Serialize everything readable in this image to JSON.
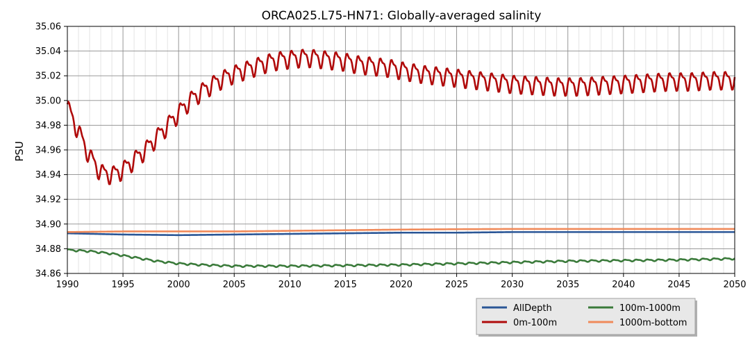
{
  "chart_data": {
    "type": "line",
    "title": "ORCA025.L75-HN71: Globally-averaged salinity",
    "xlabel": "",
    "ylabel": "PSU",
    "xlim": [
      1990,
      2050
    ],
    "ylim": [
      34.86,
      35.06
    ],
    "xticks": [
      "1990",
      "1995",
      "2000",
      "2005",
      "2010",
      "2015",
      "2020",
      "2025",
      "2030",
      "2035",
      "2040",
      "2045",
      "2050"
    ],
    "yticks": [
      "34.86",
      "34.88",
      "34.90",
      "34.92",
      "34.94",
      "34.96",
      "34.98",
      "35.00",
      "35.02",
      "35.04",
      "35.06"
    ],
    "grid": true,
    "legend_position": "bottom-right, below plot",
    "series": [
      {
        "name": "AllDepth",
        "color": "#2a5696",
        "x": [
          1990,
          1995,
          2000,
          2005,
          2010,
          2015,
          2020,
          2025,
          2030,
          2035,
          2040,
          2045,
          2050
        ],
        "values": [
          34.8925,
          34.8915,
          34.891,
          34.8915,
          34.892,
          34.8925,
          34.893,
          34.893,
          34.8935,
          34.8935,
          34.8935,
          34.8935,
          34.8935
        ]
      },
      {
        "name": "0m-100m",
        "color": "#b00a0a",
        "x": [
          1990,
          1991,
          1992,
          1993,
          1994,
          1995,
          1996,
          1997,
          1998,
          1999,
          2000,
          2001,
          2002,
          2003,
          2004,
          2005,
          2006,
          2007,
          2008,
          2009,
          2010,
          2011,
          2012,
          2013,
          2014,
          2015,
          2016,
          2017,
          2018,
          2019,
          2020,
          2022,
          2024,
          2026,
          2028,
          2030,
          2032,
          2034,
          2036,
          2038,
          2040,
          2042,
          2044,
          2046,
          2048,
          2050
        ],
        "values": [
          34.995,
          34.975,
          34.955,
          34.942,
          34.94,
          34.944,
          34.952,
          34.96,
          34.97,
          34.98,
          34.99,
          35.0,
          35.007,
          35.013,
          35.018,
          35.022,
          35.025,
          35.028,
          35.031,
          35.033,
          35.034,
          35.035,
          35.035,
          35.034,
          35.033,
          35.032,
          35.03,
          35.029,
          35.028,
          35.027,
          35.025,
          35.022,
          35.02,
          35.018,
          35.016,
          35.014,
          35.013,
          35.012,
          35.012,
          35.013,
          35.014,
          35.015,
          35.016,
          35.016,
          35.017,
          35.017
        ]
      },
      {
        "name": "100m-1000m",
        "color": "#3a7a3a",
        "x": [
          1990,
          1992,
          1994,
          1996,
          1998,
          2000,
          2002,
          2005,
          2008,
          2010,
          2015,
          2020,
          2025,
          2030,
          2035,
          2040,
          2045,
          2050
        ],
        "values": [
          34.879,
          34.878,
          34.876,
          34.873,
          34.87,
          34.868,
          34.867,
          34.866,
          34.866,
          34.866,
          34.8665,
          34.867,
          34.868,
          34.869,
          34.87,
          34.8705,
          34.871,
          34.872
        ]
      },
      {
        "name": "1000m-bottom",
        "color": "#f08a5a",
        "x": [
          1990,
          1995,
          2000,
          2005,
          2010,
          2015,
          2020,
          2025,
          2030,
          2035,
          2040,
          2045,
          2050
        ],
        "values": [
          34.8935,
          34.894,
          34.894,
          34.894,
          34.8945,
          34.895,
          34.8955,
          34.8958,
          34.896,
          34.896,
          34.896,
          34.896,
          34.896
        ]
      }
    ]
  }
}
